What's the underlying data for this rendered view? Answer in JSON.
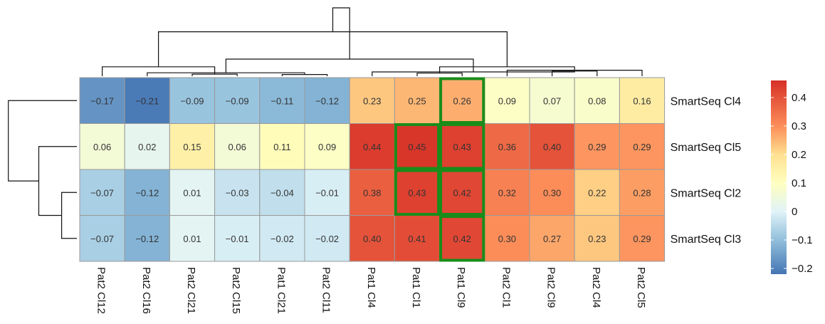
{
  "chart_data": {
    "type": "heatmap",
    "title": "",
    "rows": [
      "SmartSeq Cl4",
      "SmartSeq Cl5",
      "SmartSeq Cl2",
      "SmartSeq Cl3"
    ],
    "columns": [
      "Pat2 Cl12",
      "Pat2 Cl16",
      "Pat2 Cl21",
      "Pat2 Cl15",
      "Pat1 Cl21",
      "Pat2 Cl11",
      "Pat1 Cl4",
      "Pat1 Cl1",
      "Pat1 Cl9",
      "Pat2 Cl1",
      "Pat2 Cl9",
      "Pat2 Cl4",
      "Pat2 Cl5"
    ],
    "values": [
      [
        -0.17,
        -0.21,
        -0.09,
        -0.09,
        -0.11,
        -0.12,
        0.23,
        0.25,
        0.26,
        0.09,
        0.07,
        0.08,
        0.16
      ],
      [
        0.06,
        0.02,
        0.15,
        0.06,
        0.11,
        0.09,
        0.44,
        0.45,
        0.43,
        0.36,
        0.4,
        0.29,
        0.29
      ],
      [
        -0.07,
        -0.12,
        0.01,
        -0.03,
        -0.04,
        -0.01,
        0.38,
        0.43,
        0.42,
        0.32,
        0.3,
        0.22,
        0.28
      ],
      [
        -0.07,
        -0.12,
        0.01,
        -0.01,
        -0.02,
        -0.02,
        0.4,
        0.41,
        0.42,
        0.3,
        0.27,
        0.23,
        0.29
      ]
    ],
    "value_labels": [
      [
        "−0.17",
        "−0.21",
        "−0.09",
        "−0.09",
        "−0.11",
        "−0.12",
        "0.23",
        "0.25",
        "0.26",
        "0.09",
        "0.07",
        "0.08",
        "0.16"
      ],
      [
        "0.06",
        "0.02",
        "0.15",
        "0.06",
        "0.11",
        "0.09",
        "0.44",
        "0.45",
        "0.43",
        "0.36",
        "0.40",
        "0.29",
        "0.29"
      ],
      [
        "−0.07",
        "−0.12",
        "0.01",
        "−0.03",
        "−0.04",
        "−0.01",
        "0.38",
        "0.43",
        "0.42",
        "0.32",
        "0.30",
        "0.22",
        "0.28"
      ],
      [
        "−0.07",
        "−0.12",
        "0.01",
        "−0.01",
        "−0.02",
        "−0.02",
        "0.40",
        "0.41",
        "0.42",
        "0.30",
        "0.27",
        "0.23",
        "0.29"
      ]
    ],
    "highlighted_cells": [
      [
        0,
        8
      ],
      [
        1,
        7
      ],
      [
        1,
        8
      ],
      [
        2,
        7
      ],
      [
        2,
        8
      ],
      [
        3,
        8
      ]
    ],
    "highlight_color": "#1a8c1a",
    "color_scale": {
      "min": -0.22,
      "max": 0.46,
      "stops": [
        {
          "value": -0.22,
          "color": "#4575b4"
        },
        {
          "value": -0.1,
          "color": "#91bfdb"
        },
        {
          "value": 0.0,
          "color": "#e0f3f8"
        },
        {
          "value": 0.1,
          "color": "#ffffbf"
        },
        {
          "value": 0.2,
          "color": "#fee090"
        },
        {
          "value": 0.3,
          "color": "#fc8d59"
        },
        {
          "value": 0.46,
          "color": "#d73027"
        }
      ]
    },
    "legend_ticks": [
      {
        "value": 0.4,
        "label": "0.4"
      },
      {
        "value": 0.3,
        "label": "0.3"
      },
      {
        "value": 0.2,
        "label": "0.2"
      },
      {
        "value": 0.1,
        "label": "0.1"
      },
      {
        "value": 0.0,
        "label": "0"
      },
      {
        "value": -0.1,
        "label": "−0.1"
      },
      {
        "value": -0.2,
        "label": "−0.2"
      }
    ],
    "legend_placement": "right",
    "col_dendrogram": {
      "merges": [
        [
          2,
          3,
          0.12
        ],
        [
          4,
          5,
          0.1
        ],
        [
          7,
          8,
          0.18
        ],
        [
          10,
          11,
          0.3
        ],
        [
          1,
          14,
          0.2
        ],
        [
          6,
          16,
          0.25
        ],
        [
          12,
          9,
          0.35
        ],
        [
          15,
          19,
          0.55
        ],
        [
          13,
          0,
          0.55
        ],
        [
          18,
          17,
          1.0
        ],
        [
          21,
          20,
          2.6
        ],
        [
          22,
          23,
          4.0
        ]
      ]
    },
    "row_dendrogram": {
      "merges": [
        [
          2,
          3,
          0.1
        ],
        [
          4,
          1,
          0.25
        ],
        [
          5,
          0,
          0.45
        ]
      ]
    }
  }
}
